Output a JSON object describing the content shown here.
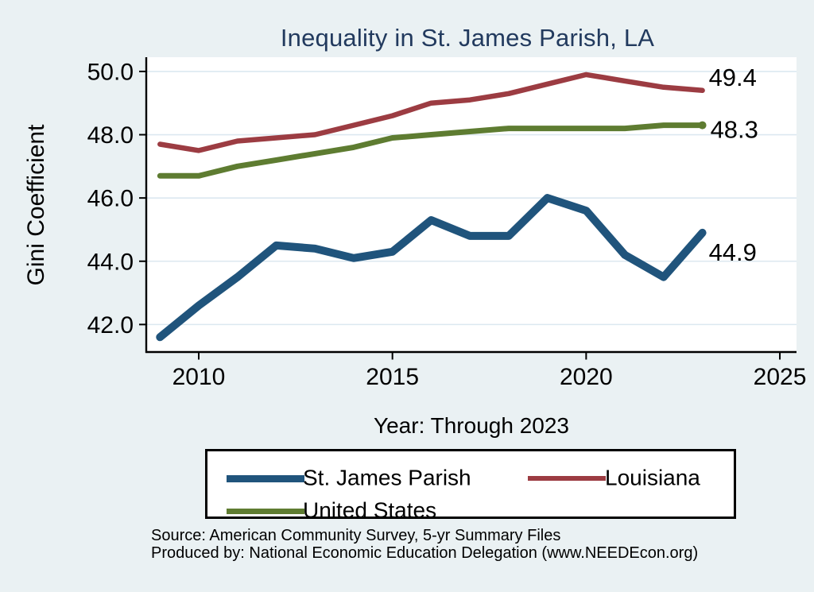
{
  "colors": {
    "background": "#eaf1f3",
    "plot_background": "#ffffff",
    "grid": "#dce8f0",
    "axis": "#000000",
    "title": "#223a5e",
    "text": "#000000"
  },
  "chart_data": {
    "type": "line",
    "title": "Inequality in St. James Parish, LA",
    "xlabel": "Year: Through 2023",
    "ylabel": "Gini Coefficient",
    "x": [
      2009,
      2010,
      2011,
      2012,
      2013,
      2014,
      2015,
      2016,
      2017,
      2018,
      2019,
      2020,
      2021,
      2022,
      2023
    ],
    "series": [
      {
        "id": "st-james-parish",
        "name": "St. James Parish",
        "color": "#20547c",
        "line_width": 10,
        "values": [
          41.6,
          42.6,
          43.5,
          44.5,
          44.4,
          44.1,
          44.3,
          45.3,
          44.8,
          44.8,
          46.0,
          45.6,
          44.2,
          43.5,
          44.9
        ],
        "end_label": "44.9",
        "end_marker": false,
        "end_label_offset": [
          8,
          35
        ]
      },
      {
        "id": "louisiana",
        "name": "Louisiana",
        "color": "#9c3c42",
        "line_width": 6.5,
        "values": [
          47.7,
          47.5,
          47.8,
          47.9,
          48.0,
          48.3,
          48.6,
          49.0,
          49.1,
          49.3,
          49.6,
          49.9,
          49.7,
          49.5,
          49.4
        ],
        "end_label": "49.4",
        "end_marker": false,
        "end_label_offset": [
          8,
          -6
        ]
      },
      {
        "id": "united-states",
        "name": "United States",
        "color": "#5e7c31",
        "line_width": 7,
        "values": [
          46.7,
          46.7,
          47.0,
          47.2,
          47.4,
          47.6,
          47.9,
          48.0,
          48.1,
          48.2,
          48.2,
          48.2,
          48.2,
          48.3,
          48.3
        ],
        "end_label": "48.3",
        "end_marker": true,
        "end_label_offset": [
          10,
          16
        ]
      }
    ],
    "yticks": [
      {
        "value": 42,
        "label": "42.0"
      },
      {
        "value": 44,
        "label": "44.0"
      },
      {
        "value": 46,
        "label": "46.0"
      },
      {
        "value": 48,
        "label": "48.0"
      },
      {
        "value": 50,
        "label": "50.0"
      }
    ],
    "xticks": [
      {
        "value": 2010,
        "label": "2010"
      },
      {
        "value": 2015,
        "label": "2015"
      },
      {
        "value": 2020,
        "label": "2020"
      },
      {
        "value": 2025,
        "label": "2025"
      }
    ],
    "xlim": [
      2008.646,
      2025.43
    ],
    "ylim": [
      41.13,
      50.45
    ],
    "grid": "horizontal",
    "legend_position": "bottom-box"
  },
  "footer": {
    "source_line": "Source: American Community Survey, 5-yr Summary Files",
    "produced_line": "Produced by: National Economic Education Delegation (www.NEEDEcon.org)"
  }
}
